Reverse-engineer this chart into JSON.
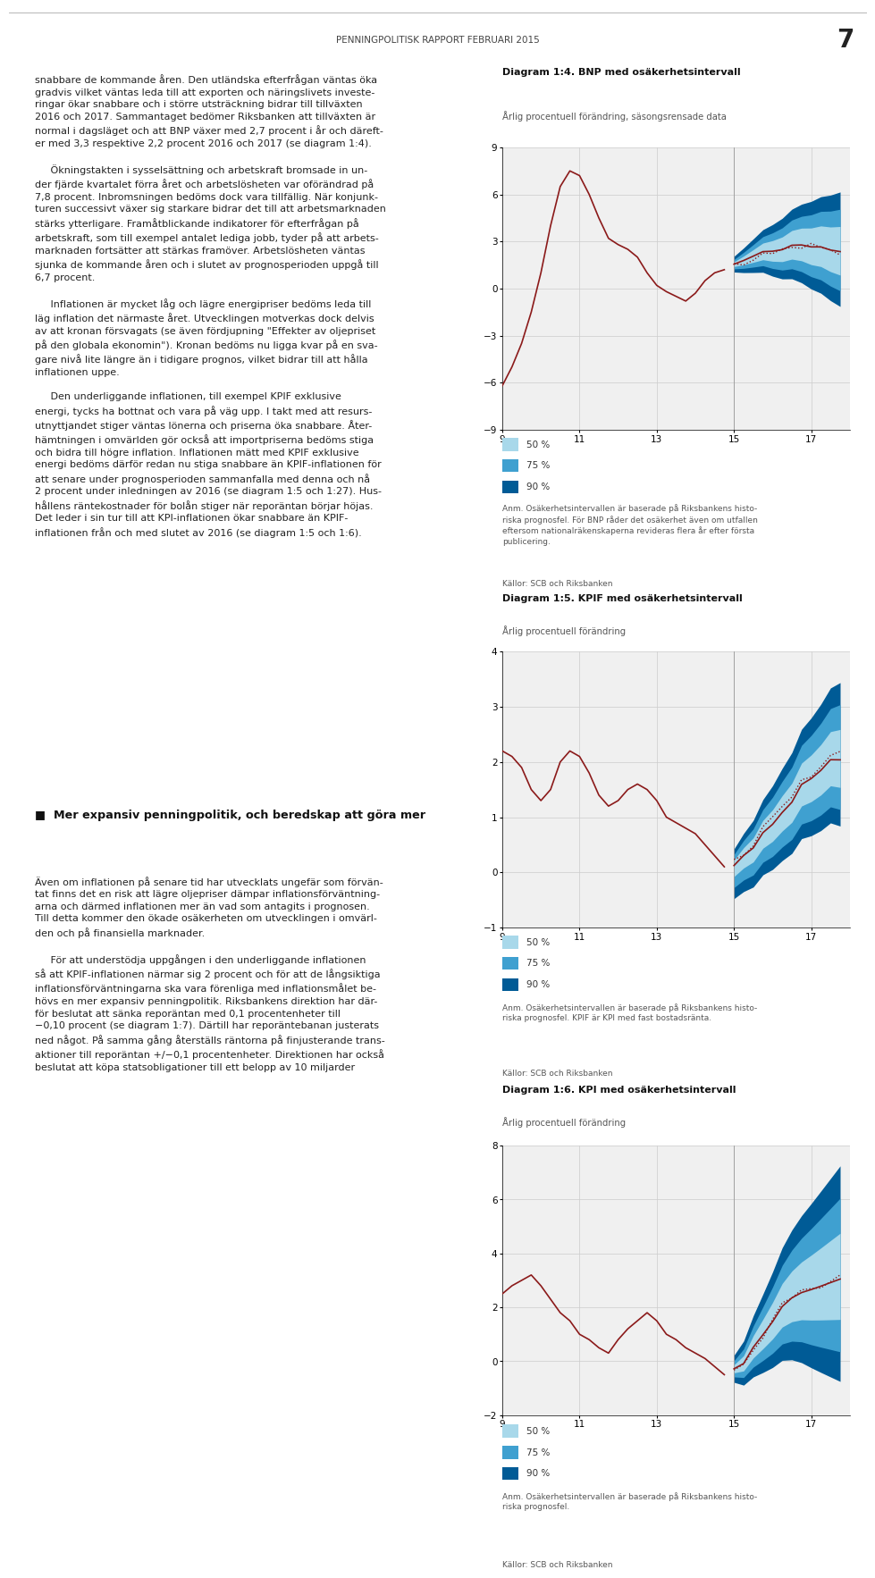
{
  "page_title": "PENNINGPOLITISK RAPPORT FEBRUARI 2015",
  "page_number": "7",
  "background_color": "#ffffff",
  "chart1": {
    "title_bold": "Diagram 1:4. BNP med osäkerhetsintervall",
    "subtitle": "Årlig procentuell förändring, säsongsrensade data",
    "ylim": [
      -9,
      9
    ],
    "yticks": [
      -9,
      -6,
      -3,
      0,
      3,
      6,
      9
    ],
    "xlim": [
      9,
      18
    ],
    "xticks": [
      9,
      11,
      13,
      15,
      17
    ],
    "note": "Anm. Osäkerhetsintervallen är baserade på Riksbankens histo-\nriska prognosfel. För BNP råder det osäkerhet även om utfallen\neftersom nationalräkenskaperna revideras flera år efter första\npublicering.",
    "source": "Källor: SCB och Riksbanken",
    "color_90": "#005b96",
    "color_75": "#3fa0d0",
    "color_50": "#a8d8ea",
    "line_color": "#8b1a1a",
    "dotted_color": "#8b1a1a"
  },
  "chart2": {
    "title_bold": "Diagram 1:5. KPIF med osäkerhetsintervall",
    "subtitle": "Årlig procentuell förändring",
    "ylim": [
      -1,
      4
    ],
    "yticks": [
      -1,
      0,
      1,
      2,
      3,
      4
    ],
    "xlim": [
      9,
      18
    ],
    "xticks": [
      9,
      11,
      13,
      15,
      17
    ],
    "note": "Anm. Osäkerhetsintervallen är baserade på Riksbankens histo-\nriska prognosfel. KPIF är KPI med fast bostadsränta.",
    "source": "Källor: SCB och Riksbanken",
    "color_90": "#005b96",
    "color_75": "#3fa0d0",
    "color_50": "#a8d8ea",
    "line_color": "#8b1a1a",
    "dotted_color": "#8b1a1a"
  },
  "chart3": {
    "title_bold": "Diagram 1:6. KPI med osäkerhetsintervall",
    "subtitle": "Årlig procentuell förändring",
    "ylim": [
      -2,
      8
    ],
    "yticks": [
      -2,
      0,
      2,
      4,
      6,
      8
    ],
    "xlim": [
      9,
      18
    ],
    "xticks": [
      9,
      11,
      13,
      15,
      17
    ],
    "note": "Anm. Osäkerhetsintervallen är baserade på Riksbankens histo-\nriska prognosfel.",
    "source": "Källor: SCB och Riksbanken",
    "color_90": "#005b96",
    "color_75": "#3fa0d0",
    "color_50": "#a8d8ea",
    "line_color": "#8b1a1a",
    "dotted_color": "#8b1a1a"
  },
  "left_col_text": "snabbare de kommande åren. Den utländska efterfrågan väntas öka\ngradvis vilket väntas leda till att exporten och näringslivets investe-\nringar ökar snabbare och i större utsträckning bidrar till tillväxten\n2016 och 2017. Sammantaget bedömer Riksbanken att tillväxten är\nnormal i dagsläget och att BNP växer med 2,7 procent i år och däreft-\ner med 3,3 respektive 2,2 procent 2016 och 2017 (se diagram 1:4).\n\n     Ökningstakten i sysselsättning och arbetskraft bromsade in un-\nder fjärde kvartalet förra året och arbetslösheten var oförändrad på\n7,8 procent. Inbromsningen bedöms dock vara tillfällig. När konjunk-\nturen successivt växer sig starkare bidrar det till att arbetsmarknaden\nstärks ytterligare. Framåtblickande indikatorer för efterfrågan på\narbetskraft, som till exempel antalet lediga jobb, tyder på att arbets-\nmarknaden fortsätter att stärkas framöver. Arbetslösheten väntas\nsjunka de kommande åren och i slutet av prognosperioden uppgå till\n6,7 procent.\n\n     Inflationen är mycket låg och lägre energipriser bedöms leda till\nläg inflation det närmaste året. Utvecklingen motverkas dock delvis\nav att kronan försvagats (se även fördjupning \"Effekter av oljepriset\npå den globala ekonomin\"). Kronan bedöms nu ligga kvar på en sva-\ngare nivå lite längre än i tidigare prognos, vilket bidrar till att hålla\ninflationen uppe.\n\n     Den underliggande inflationen, till exempel KPIF exklusive\nenergi, tycks ha bottnat och vara på väg upp. I takt med att resurs-\nutnyttjandet stiger väntas lönerna och priserna öka snabbare. Åter-\nhämtningen i omvärlden gör också att importpriserna bedöms stiga\noch bidra till högre inflation. Inflationen mätt med KPIF exklusive\nenergi bedöms därför redan nu stiga snabbare än KPIF-inflationen för\natt senare under prognosperioden sammanfalla med denna och nå\n2 procent under inledningen av 2016 (se diagram 1:5 och 1:27). Hus-\nhållens räntekostnader för bolån stiger när reporäntan börjar höjas.\nDet leder i sin tur till att KPI-inflationen ökar snabbare än KPIF-\ninflationen från och med slutet av 2016 (se diagram 1:5 och 1:6).",
  "section_header": "Mer expansiv penningpolitik, och beredskap att göra mer",
  "right_col_text": "Även om inflationen på senare tid har utvecklats ungefär som förvän-\ntat finns det en risk att lägre oljepriser dämpar inflationsförväntning-\narna och därmed inflationen mer än vad som antagits i prognosen.\nTill detta kommer den ökade osäkerheten om utvecklingen i omvärl-\nden och på finansiella marknader.\n\n     För att understödja uppgången i den underliggande inflationen\nså att KPIF-inflationen närmar sig 2 procent och för att de långsiktiga\ninflationsförväntningarna ska vara förenliga med inflationsmålet be-\nhövs en mer expansiv penningpolitik. Riksbankens direktion har där-\nför beslutat att sänka reporäntan med 0,1 procentenheter till\n−0,10 procent (se diagram 1:7). Därtill har reporäntebanan justerats\nned något. På samma gång återställs räntorna på finjusterande trans-\naktioner till reporäntan +/−0,1 procentenheter. Direktionen har också\nbeslutat att köpa statsobligationer till ett belopp av 10 miljarder"
}
